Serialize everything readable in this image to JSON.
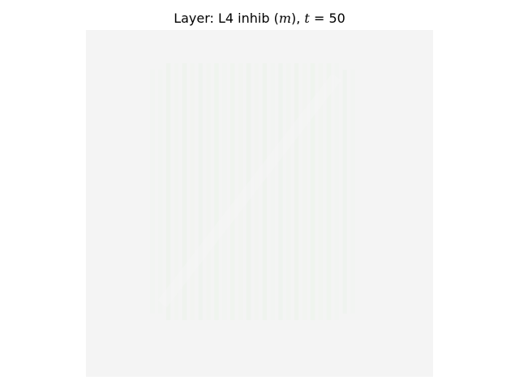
{
  "chart_data": {
    "type": "heatmap",
    "title": {
      "prefix": "Layer: L4 inhib (",
      "var_m": "m",
      "mid": "), ",
      "var_t": "t",
      "suffix": " = 50"
    },
    "xlabel": "",
    "ylabel": "",
    "axes_visible": false,
    "grid": false,
    "colors": {
      "background": "#f4f4f4",
      "stripe_light": "#edf3ec",
      "stripe_faint": "#f0f4ef",
      "diagonal": "#f6f6f6"
    },
    "columns": {
      "count": 26,
      "intensity": [
        0.15,
        0.25,
        0.6,
        0.2,
        0.7,
        0.3,
        0.55,
        0.2,
        0.65,
        0.25,
        0.5,
        0.2,
        0.6,
        0.3,
        0.7,
        0.25,
        0.55,
        0.2,
        0.6,
        0.3,
        0.65,
        0.2,
        0.5,
        0.25,
        0.45,
        0.15
      ]
    }
  }
}
